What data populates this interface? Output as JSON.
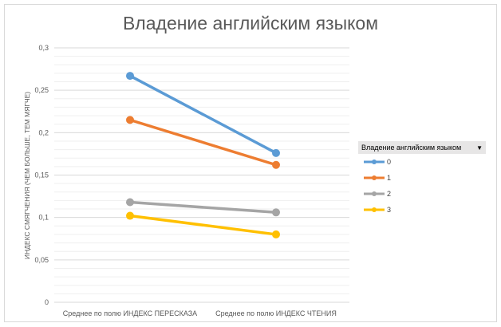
{
  "chart_data": {
    "type": "line",
    "title": "Владение английским языком",
    "xlabel": "",
    "ylabel": "ИНДЕКС СМЯГЧЕНИЯ (ЧЕМ БОЛЬШЕ, ТЕМ МЯГЧЕ)",
    "categories": [
      "Среднее по полю ИНДЕКС ПЕРЕСКАЗА",
      "Среднее по полю ИНДЕКС ЧТЕНИЯ"
    ],
    "ylim": [
      0,
      0.3
    ],
    "y_ticks": [
      "0",
      "0,05",
      "0,1",
      "0,15",
      "0,2",
      "0,25",
      "0,3"
    ],
    "y_tick_values": [
      0,
      0.05,
      0.1,
      0.15,
      0.2,
      0.25,
      0.3
    ],
    "grid": true,
    "legend_title": "Владение английским языком",
    "legend_position": "right",
    "series": [
      {
        "name": "0",
        "color": "#5b9bd5",
        "values": [
          0.267,
          0.176
        ]
      },
      {
        "name": "1",
        "color": "#ed7d31",
        "values": [
          0.215,
          0.162
        ]
      },
      {
        "name": "2",
        "color": "#a5a5a5",
        "values": [
          0.118,
          0.106
        ]
      },
      {
        "name": "3",
        "color": "#ffc000",
        "values": [
          0.102,
          0.08
        ]
      }
    ]
  }
}
